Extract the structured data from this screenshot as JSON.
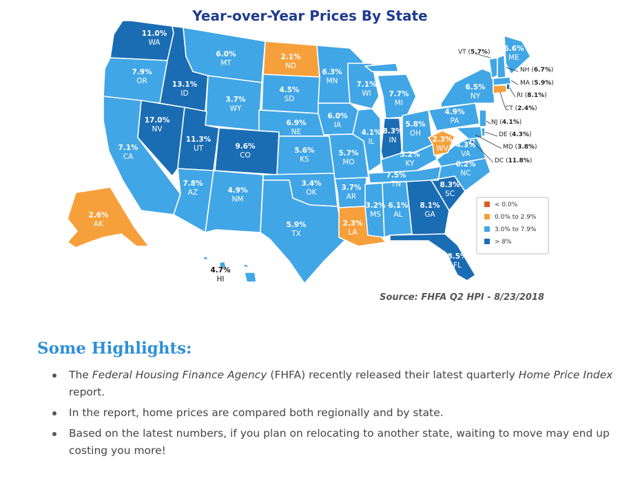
{
  "title": "Year-over-Year Prices By State",
  "colors": {
    "below_0": "#e0572a",
    "low": "#f6a03b",
    "mid": "#41a6e6",
    "high": "#1b6db3"
  },
  "legend": [
    {
      "label": "< 0.0%",
      "color": "#e0572a"
    },
    {
      "label": "0.0% to 2.9%",
      "color": "#f6a03b"
    },
    {
      "label": "3.0% to 7.9%",
      "color": "#41a6e6"
    },
    {
      "label": "> 8%",
      "color": "#1b6db3"
    }
  ],
  "states": [
    {
      "abbr": "WA",
      "value": "11.0%",
      "bucket": "high"
    },
    {
      "abbr": "OR",
      "value": "7.9%",
      "bucket": "mid"
    },
    {
      "abbr": "CA",
      "value": "7.1%",
      "bucket": "mid"
    },
    {
      "abbr": "ID",
      "value": "13.1%",
      "bucket": "high"
    },
    {
      "abbr": "NV",
      "value": "17.0%",
      "bucket": "high"
    },
    {
      "abbr": "MT",
      "value": "6.0%",
      "bucket": "mid"
    },
    {
      "abbr": "WY",
      "value": "3.7%",
      "bucket": "mid"
    },
    {
      "abbr": "UT",
      "value": "11.3%",
      "bucket": "high"
    },
    {
      "abbr": "CO",
      "value": "9.6%",
      "bucket": "high"
    },
    {
      "abbr": "AZ",
      "value": "7.8%",
      "bucket": "mid"
    },
    {
      "abbr": "NM",
      "value": "4.9%",
      "bucket": "mid"
    },
    {
      "abbr": "ND",
      "value": "2.1%",
      "bucket": "low"
    },
    {
      "abbr": "SD",
      "value": "4.5%",
      "bucket": "mid"
    },
    {
      "abbr": "NE",
      "value": "6.9%",
      "bucket": "mid"
    },
    {
      "abbr": "KS",
      "value": "5.6%",
      "bucket": "mid"
    },
    {
      "abbr": "OK",
      "value": "3.4%",
      "bucket": "mid"
    },
    {
      "abbr": "TX",
      "value": "5.9%",
      "bucket": "mid"
    },
    {
      "abbr": "MN",
      "value": "6.3%",
      "bucket": "mid"
    },
    {
      "abbr": "IA",
      "value": "6.0%",
      "bucket": "mid"
    },
    {
      "abbr": "MO",
      "value": "5.7%",
      "bucket": "mid"
    },
    {
      "abbr": "AR",
      "value": "3.7%",
      "bucket": "mid"
    },
    {
      "abbr": "LA",
      "value": "2.3%",
      "bucket": "low"
    },
    {
      "abbr": "WI",
      "value": "7.1%",
      "bucket": "mid"
    },
    {
      "abbr": "IL",
      "value": "4.1%",
      "bucket": "mid"
    },
    {
      "abbr": "MI",
      "value": "7.7%",
      "bucket": "mid"
    },
    {
      "abbr": "IN",
      "value": "8.3%",
      "bucket": "high"
    },
    {
      "abbr": "OH",
      "value": "5.8%",
      "bucket": "mid"
    },
    {
      "abbr": "KY",
      "value": "5.2%",
      "bucket": "mid"
    },
    {
      "abbr": "TN",
      "value": "7.5%",
      "bucket": "mid"
    },
    {
      "abbr": "MS",
      "value": "3.2%",
      "bucket": "mid"
    },
    {
      "abbr": "AL",
      "value": "6.1%",
      "bucket": "mid"
    },
    {
      "abbr": "GA",
      "value": "8.1%",
      "bucket": "high"
    },
    {
      "abbr": "FL",
      "value": "8.5%",
      "bucket": "high"
    },
    {
      "abbr": "SC",
      "value": "8.3%",
      "bucket": "high"
    },
    {
      "abbr": "NC",
      "value": "6.2%",
      "bucket": "mid"
    },
    {
      "abbr": "VA",
      "value": "4.3%",
      "bucket": "mid"
    },
    {
      "abbr": "WV",
      "value": "2.3%",
      "bucket": "low"
    },
    {
      "abbr": "PA",
      "value": "4.9%",
      "bucket": "mid"
    },
    {
      "abbr": "NY",
      "value": "6.5%",
      "bucket": "mid"
    },
    {
      "abbr": "ME",
      "value": "6.6%",
      "bucket": "mid"
    },
    {
      "abbr": "AK",
      "value": "2.6%",
      "bucket": "low"
    },
    {
      "abbr": "HI",
      "value": "4.7%",
      "bucket": "mid"
    },
    {
      "abbr": "VT",
      "value": "5.7%",
      "bucket": "mid"
    },
    {
      "abbr": "NH",
      "value": "6.7%",
      "bucket": "mid"
    },
    {
      "abbr": "MA",
      "value": "5.9%",
      "bucket": "mid"
    },
    {
      "abbr": "RI",
      "value": "8.1%",
      "bucket": "high"
    },
    {
      "abbr": "CT",
      "value": "2.4%",
      "bucket": "low"
    },
    {
      "abbr": "NJ",
      "value": "4.1%",
      "bucket": "mid"
    },
    {
      "abbr": "DE",
      "value": "4.3%",
      "bucket": "mid"
    },
    {
      "abbr": "MD",
      "value": "3.8%",
      "bucket": "mid"
    },
    {
      "abbr": "DC",
      "value": "11.8%",
      "bucket": "high"
    }
  ],
  "source": "Source: FHFA Q2 HPI - 8/23/2018",
  "highlights": {
    "heading": "Some Highlights:",
    "b1_pre": "The ",
    "b1_it1": "Federal Housing Finance Agency",
    "b1_mid": " (FHFA) recently released their latest quarterly ",
    "b1_it2": "Home Price Index",
    "b1_post": " report.",
    "b2": "In the report, home prices are compared both regionally and by state.",
    "b3": "Based on the latest numbers, if you plan on relocating to another state, waiting to move may end up costing you more!"
  }
}
